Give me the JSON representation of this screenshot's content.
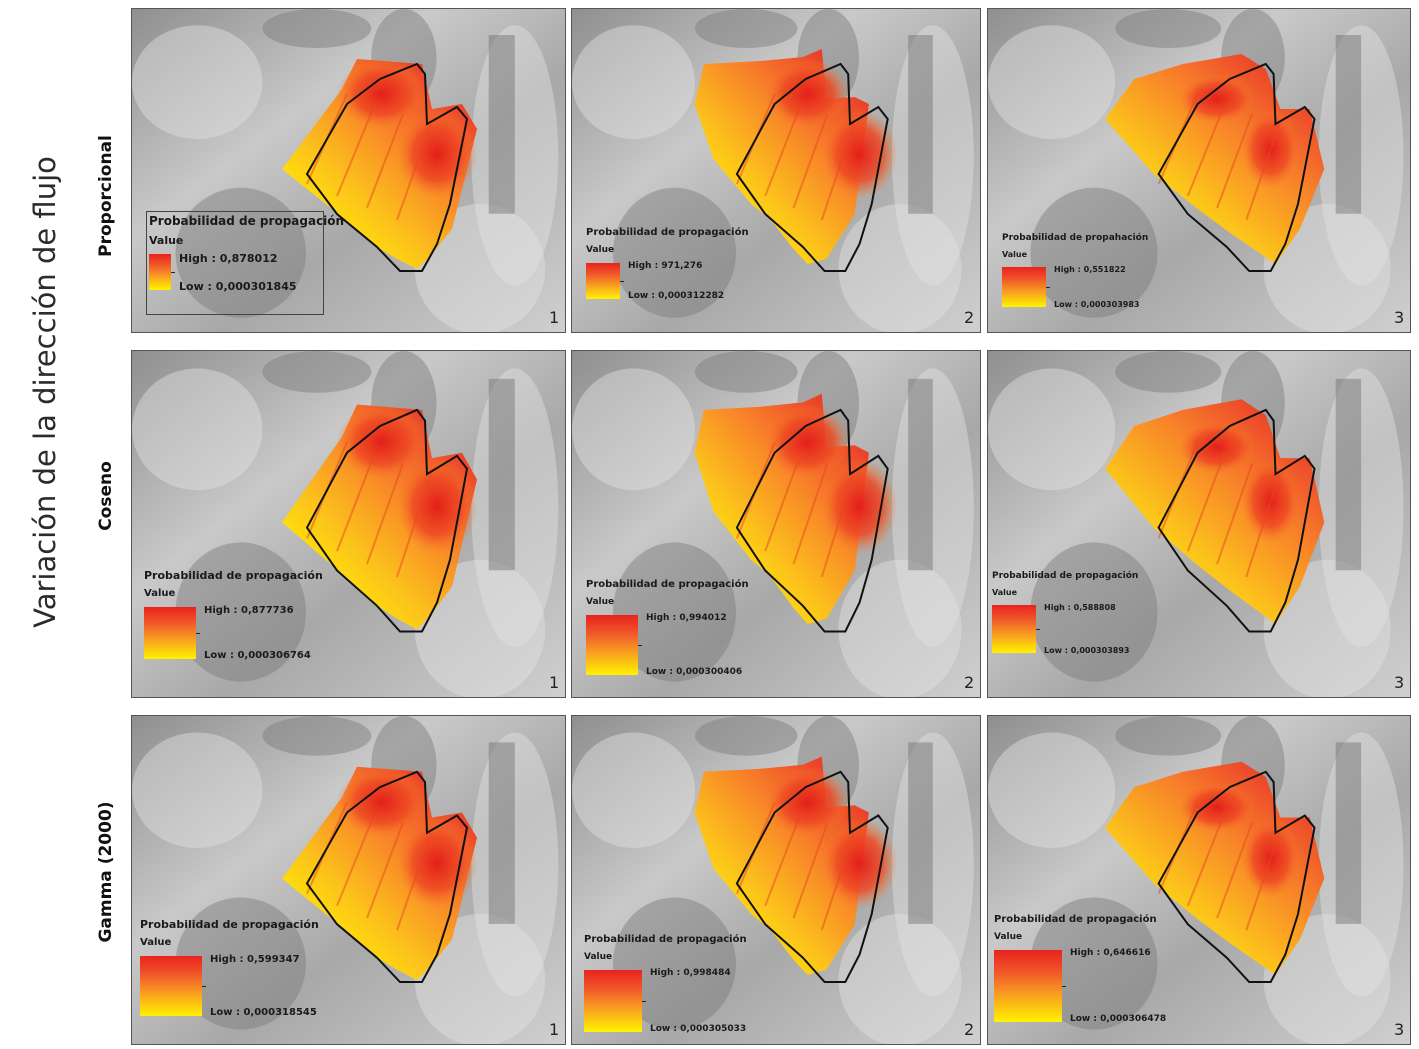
{
  "figure": {
    "title": "Variación de la dirección de flujo",
    "rows": [
      {
        "label": "Proporcional",
        "panels": [
          {
            "number": "1",
            "legend_title": "Probabilidad de propagación",
            "value_label": "Value",
            "high": "High : 0,878012",
            "low": "Low : 0,000301845"
          },
          {
            "number": "2",
            "legend_title": "Probabilidad de propagación",
            "value_label": "Value",
            "high": "High : 971,276",
            "low": "Low : 0,000312282"
          },
          {
            "number": "3",
            "legend_title": "Probabilidad de propahación",
            "value_label": "Value",
            "high": "High : 0,551822",
            "low": "Low : 0,000303983"
          }
        ]
      },
      {
        "label": "Coseno",
        "panels": [
          {
            "number": "1",
            "legend_title": "Probabilidad de propagación",
            "value_label": "Value",
            "high": "High : 0,877736",
            "low": "Low : 0,000306764"
          },
          {
            "number": "2",
            "legend_title": "Probabilidad de propagación",
            "value_label": "Value",
            "high": "High : 0,994012",
            "low": "Low : 0,000300406"
          },
          {
            "number": "3",
            "legend_title": "Probabilidad de propagación",
            "value_label": "Value",
            "high": "High : 0,588808",
            "low": "Low : 0,000303893"
          }
        ]
      },
      {
        "label": "Gamma (2000)",
        "panels": [
          {
            "number": "1",
            "legend_title": "Probabilidad de propagación",
            "value_label": "Value",
            "high": "High : 0,599347",
            "low": "Low : 0,000318545"
          },
          {
            "number": "2",
            "legend_title": "Probabilidad de propagación",
            "value_label": "Value",
            "high": "High : 0,998484",
            "low": "Low : 0,000305033"
          },
          {
            "number": "3",
            "legend_title": "Probabilidad de propagación",
            "value_label": "Value",
            "high": "High : 0,646616",
            "low": "Low : 0,000306478"
          }
        ]
      }
    ]
  },
  "colors": {
    "ramp_high": "#e8231d",
    "ramp_mid": "#f89a22",
    "ramp_low": "#fff200",
    "outline": "#111111",
    "terrain": "#bcbcbc"
  }
}
